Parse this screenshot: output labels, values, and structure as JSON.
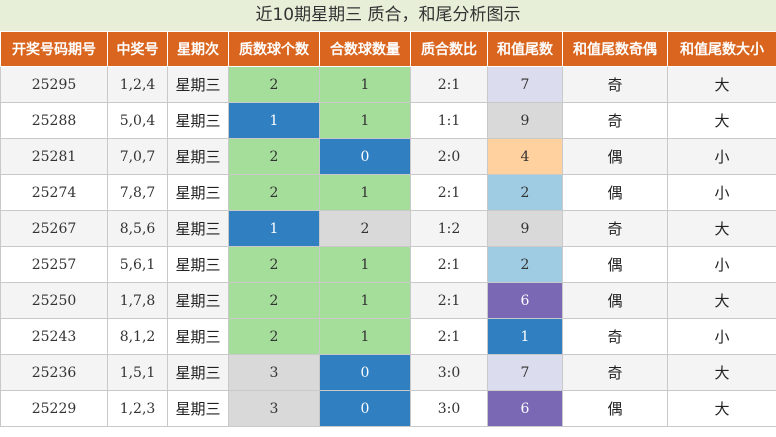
{
  "title": "近10期星期三 质合，和尾分析图示",
  "headers": [
    "开奖号码期号",
    "中奖号",
    "星期次",
    "质数球个数",
    "合数球数量",
    "质合数比",
    "和值尾数",
    "和值尾数奇偶",
    "和值尾数大小"
  ],
  "colors": {
    "header_bg": "#d9651f",
    "green": "#a5dd9b",
    "blue": "#2f7fc1",
    "gray": "#d9d9d9",
    "lavender": "#dcdcef",
    "orange": "#ffd19e",
    "light_blue": "#9fcbe3",
    "purple": "#7b68b5"
  },
  "rows": [
    {
      "period": "25295",
      "numbers": "1,2,4",
      "weekday": "星期三",
      "prime_count": "2",
      "composite_count": "1",
      "ratio": "2:1",
      "tail": "7",
      "odd_even": "奇",
      "big_small": "大"
    },
    {
      "period": "25288",
      "numbers": "5,0,4",
      "weekday": "星期三",
      "prime_count": "1",
      "composite_count": "1",
      "ratio": "1:1",
      "tail": "9",
      "odd_even": "奇",
      "big_small": "大"
    },
    {
      "period": "25281",
      "numbers": "7,0,7",
      "weekday": "星期三",
      "prime_count": "2",
      "composite_count": "0",
      "ratio": "2:0",
      "tail": "4",
      "odd_even": "偶",
      "big_small": "小"
    },
    {
      "period": "25274",
      "numbers": "7,8,7",
      "weekday": "星期三",
      "prime_count": "2",
      "composite_count": "1",
      "ratio": "2:1",
      "tail": "2",
      "odd_even": "偶",
      "big_small": "小"
    },
    {
      "period": "25267",
      "numbers": "8,5,6",
      "weekday": "星期三",
      "prime_count": "1",
      "composite_count": "2",
      "ratio": "1:2",
      "tail": "9",
      "odd_even": "奇",
      "big_small": "大"
    },
    {
      "period": "25257",
      "numbers": "5,6,1",
      "weekday": "星期三",
      "prime_count": "2",
      "composite_count": "1",
      "ratio": "2:1",
      "tail": "2",
      "odd_even": "偶",
      "big_small": "小"
    },
    {
      "period": "25250",
      "numbers": "1,7,8",
      "weekday": "星期三",
      "prime_count": "2",
      "composite_count": "1",
      "ratio": "2:1",
      "tail": "6",
      "odd_even": "偶",
      "big_small": "大"
    },
    {
      "period": "25243",
      "numbers": "8,1,2",
      "weekday": "星期三",
      "prime_count": "2",
      "composite_count": "1",
      "ratio": "2:1",
      "tail": "1",
      "odd_even": "奇",
      "big_small": "小"
    },
    {
      "period": "25236",
      "numbers": "1,5,1",
      "weekday": "星期三",
      "prime_count": "3",
      "composite_count": "0",
      "ratio": "3:0",
      "tail": "7",
      "odd_even": "奇",
      "big_small": "大"
    },
    {
      "period": "25229",
      "numbers": "1,2,3",
      "weekday": "星期三",
      "prime_count": "3",
      "composite_count": "0",
      "ratio": "3:0",
      "tail": "6",
      "odd_even": "偶",
      "big_small": "大"
    }
  ]
}
